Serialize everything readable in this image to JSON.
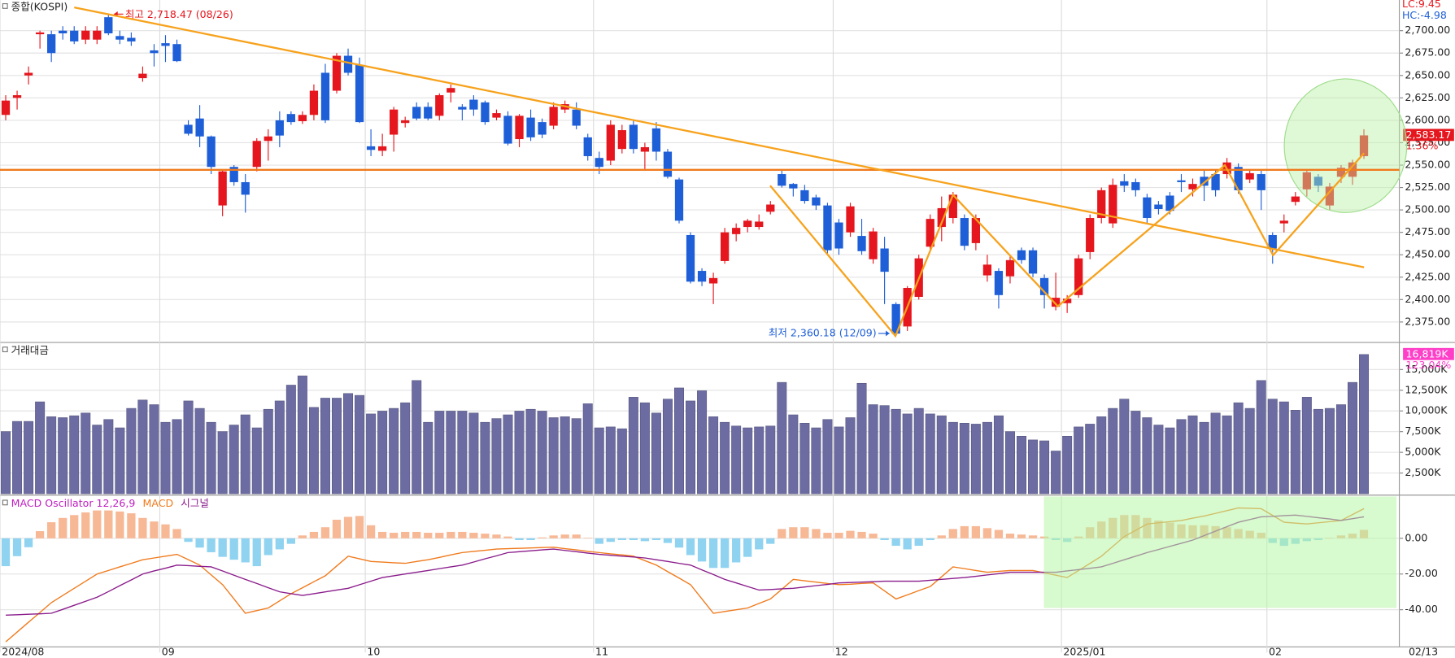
{
  "chart_data": [
    {
      "type": "candlestick",
      "title": "종합(KOSPI)",
      "lc": "LC:9.45",
      "hc": "HC:-4.98",
      "up_color": "#e5161d",
      "down_color": "#1e5fd8",
      "ylim": [
        2353.2,
        2734.2
      ],
      "yticks": [
        {
          "value": 2375,
          "label": "2,375.00"
        },
        {
          "value": 2400,
          "label": "2,400.00"
        },
        {
          "value": 2425,
          "label": "2,425.00"
        },
        {
          "value": 2450,
          "label": "2,450.00"
        },
        {
          "value": 2475,
          "label": "2,475.00"
        },
        {
          "value": 2500,
          "label": "2,500.00"
        },
        {
          "value": 2525,
          "label": "2,525.00"
        },
        {
          "value": 2550,
          "label": "2,550.00"
        },
        {
          "value": 2575,
          "label": "2,575.00"
        },
        {
          "value": 2600,
          "label": "2,600.00"
        },
        {
          "value": 2625,
          "label": "2,625.00"
        },
        {
          "value": 2650,
          "label": "2,650.00"
        },
        {
          "value": 2675,
          "label": "2,675.00"
        },
        {
          "value": 2700,
          "label": "2,700.00"
        }
      ],
      "grid": true,
      "high_annotation": "최고 2,718.47 (08/26)",
      "low_annotation": "최저 2,360.18 (12/09)",
      "last_value_label": "2,583.17",
      "last_change": "1.36%",
      "open": [
        2606,
        2625,
        2650,
        2696,
        2696,
        2700,
        2700,
        2690,
        2690,
        2715,
        2694,
        2692,
        2647,
        2678,
        2686,
        2685,
        2595,
        2602,
        2582,
        2505,
        2548,
        2531,
        2548,
        2577,
        2600,
        2607,
        2599,
        2606,
        2653,
        2633,
        2672,
        2662,
        2571,
        2566,
        2584,
        2597,
        2615,
        2615,
        2605,
        2631,
        2615,
        2623,
        2620,
        2603,
        2605,
        2579,
        2603,
        2598,
        2594,
        2612,
        2612,
        2581,
        2558,
        2555,
        2568,
        2595,
        2565,
        2591,
        2565,
        2534,
        2472,
        2432,
        2418,
        2443,
        2473,
        2481,
        2481,
        2498,
        2540,
        2529,
        2522,
        2514,
        2505,
        2486,
        2475,
        2471,
        2445,
        2457,
        2395,
        2370,
        2403,
        2459,
        2481,
        2491,
        2491,
        2463,
        2427,
        2432,
        2426,
        2455,
        2455,
        2424,
        2392,
        2396,
        2405,
        2453,
        2491,
        2485,
        2532,
        2531,
        2514,
        2506,
        2516,
        2533,
        2523,
        2537,
        2540,
        2540,
        2548,
        2534,
        2540,
        2472,
        2485,
        2509,
        2523,
        2537,
        2505,
        2537,
        2537,
        2560
      ],
      "high": [
        2628,
        2633,
        2660,
        2700,
        2700,
        2705,
        2705,
        2705,
        2705,
        2718.47,
        2700,
        2698,
        2660,
        2685,
        2695,
        2690,
        2600,
        2617,
        2583,
        2545,
        2550,
        2540,
        2580,
        2590,
        2610,
        2610,
        2610,
        2640,
        2663,
        2675,
        2680,
        2670,
        2590,
        2585,
        2615,
        2604,
        2620,
        2620,
        2630,
        2640,
        2618,
        2628,
        2622,
        2612,
        2610,
        2607,
        2612,
        2602,
        2620,
        2622,
        2620,
        2585,
        2565,
        2600,
        2595,
        2600,
        2575,
        2598,
        2568,
        2536,
        2475,
        2435,
        2430,
        2480,
        2485,
        2490,
        2495,
        2510,
        2545,
        2530,
        2528,
        2517,
        2508,
        2490,
        2508,
        2490,
        2480,
        2470,
        2397,
        2415,
        2450,
        2495,
        2515,
        2520,
        2495,
        2495,
        2450,
        2435,
        2448,
        2458,
        2458,
        2428,
        2430,
        2405,
        2450,
        2495,
        2525,
        2535,
        2540,
        2535,
        2518,
        2510,
        2520,
        2540,
        2535,
        2545,
        2545,
        2558,
        2552,
        2545,
        2545,
        2475,
        2495,
        2520,
        2545,
        2540,
        2530,
        2550,
        2556,
        2590
      ],
      "low": [
        2600,
        2612,
        2640,
        2680,
        2665,
        2690,
        2685,
        2685,
        2685,
        2695,
        2685,
        2683,
        2643,
        2660,
        2665,
        2665,
        2583,
        2570,
        2540,
        2493,
        2527,
        2497,
        2543,
        2555,
        2570,
        2595,
        2596,
        2600,
        2597,
        2630,
        2650,
        2597,
        2560,
        2560,
        2565,
        2592,
        2600,
        2600,
        2600,
        2620,
        2600,
        2605,
        2595,
        2600,
        2572,
        2570,
        2577,
        2580,
        2590,
        2608,
        2590,
        2555,
        2540,
        2550,
        2563,
        2563,
        2545,
        2555,
        2535,
        2485,
        2418,
        2415,
        2395,
        2440,
        2465,
        2475,
        2478,
        2495,
        2525,
        2515,
        2507,
        2500,
        2450,
        2450,
        2470,
        2450,
        2440,
        2395,
        2360.18,
        2365,
        2400,
        2455,
        2465,
        2485,
        2455,
        2455,
        2420,
        2390,
        2418,
        2440,
        2425,
        2390,
        2388,
        2385,
        2402,
        2445,
        2485,
        2480,
        2520,
        2515,
        2485,
        2495,
        2495,
        2520,
        2515,
        2510,
        2515,
        2535,
        2518,
        2530,
        2500,
        2440,
        2475,
        2505,
        2515,
        2520,
        2500,
        2530,
        2528,
        2557
      ],
      "close": [
        2622,
        2628,
        2653,
        2698,
        2675,
        2697,
        2688,
        2700,
        2700,
        2697,
        2690,
        2688,
        2652,
        2675,
        2683,
        2666,
        2585,
        2582,
        2548,
        2543,
        2531,
        2517,
        2577,
        2582,
        2583,
        2598,
        2606,
        2633,
        2600,
        2672,
        2653,
        2598,
        2567,
        2571,
        2612,
        2600,
        2602,
        2602,
        2628,
        2636,
        2612,
        2612,
        2598,
        2608,
        2574,
        2605,
        2581,
        2584,
        2615,
        2618,
        2594,
        2560,
        2548,
        2595,
        2589,
        2568,
        2570,
        2565,
        2537,
        2488,
        2420,
        2420,
        2424,
        2475,
        2480,
        2488,
        2487,
        2506,
        2527,
        2524,
        2510,
        2505,
        2455,
        2457,
        2504,
        2454,
        2476,
        2431,
        2362,
        2413,
        2446,
        2490,
        2502,
        2517,
        2460,
        2491,
        2439,
        2405,
        2444,
        2444,
        2429,
        2405,
        2402,
        2401,
        2446,
        2491,
        2522,
        2528,
        2527,
        2522,
        2491,
        2501,
        2499,
        2531,
        2529,
        2527,
        2522,
        2553,
        2522,
        2541,
        2522,
        2457,
        2488,
        2515,
        2542,
        2527,
        2526,
        2547,
        2553,
        2583.17
      ]
    },
    {
      "type": "bar",
      "title": "거래대금",
      "color": "#6c6ca2",
      "last_color": "#ff3fc8",
      "ylim": [
        0,
        18160
      ],
      "yticks": [
        {
          "value": 2500,
          "label": "2,500K"
        },
        {
          "value": 5000,
          "label": "5,000K"
        },
        {
          "value": 7500,
          "label": "7,500K"
        },
        {
          "value": 10000,
          "label": "10,000K"
        },
        {
          "value": 12500,
          "label": "12,500K"
        },
        {
          "value": 15000,
          "label": "15,000K"
        }
      ],
      "grid": true,
      "last_value_label": "16,819K",
      "last_change": "123.04%",
      "values": [
        7510,
        8740,
        8740,
        11100,
        9300,
        9190,
        9420,
        9750,
        8300,
        8970,
        7960,
        10310,
        11320,
        10760,
        8630,
        8970,
        11210,
        10310,
        8630,
        7510,
        8300,
        9530,
        7960,
        10200,
        11210,
        13120,
        14240,
        10430,
        11550,
        11550,
        12110,
        11880,
        9640,
        9980,
        10310,
        10990,
        13680,
        8630,
        9980,
        9980,
        9980,
        9750,
        8630,
        9080,
        9530,
        9980,
        10200,
        9980,
        9190,
        9300,
        9080,
        10870,
        7960,
        8070,
        7850,
        11660,
        10990,
        9750,
        11430,
        12780,
        11210,
        12440,
        9300,
        8630,
        8180,
        7960,
        8070,
        8180,
        13450,
        9530,
        8520,
        7960,
        8970,
        8070,
        9190,
        13340,
        10760,
        10650,
        10200,
        9640,
        10310,
        9640,
        9420,
        8630,
        8520,
        8410,
        8630,
        9420,
        7510,
        6950,
        6500,
        6390,
        5160,
        6950,
        8070,
        8410,
        9300,
        10310,
        11430,
        9980,
        9190,
        8300,
        7960,
        8970,
        9420,
        8630,
        9750,
        9420,
        10990,
        10310,
        13680,
        11430,
        11100,
        10090,
        11660,
        10200,
        10310,
        10760,
        13450,
        16819
      ]
    },
    {
      "type": "macd",
      "negative_color": "#8fd3f0",
      "ylim": [
        -60.8,
        23.4
      ],
      "yticks": [
        {
          "value": 0,
          "label": "0.00"
        },
        {
          "value": -20,
          "label": "-20.00"
        },
        {
          "value": -40,
          "label": "-40.00"
        }
      ],
      "grid": true,
      "categories": [
        "2024/08",
        null,
        null,
        null,
        null,
        null,
        null,
        null,
        null,
        null,
        null,
        null,
        null,
        null,
        "09",
        null,
        null,
        null,
        null,
        null,
        null,
        null,
        null,
        null,
        null,
        null,
        null,
        null,
        null,
        null,
        null,
        null,
        "10",
        null,
        null,
        null,
        null,
        null,
        null,
        null,
        null,
        null,
        null,
        null,
        null,
        null,
        null,
        null,
        null,
        null,
        null,
        null,
        "11",
        null,
        null,
        null,
        null,
        null,
        null,
        null,
        null,
        null,
        null,
        null,
        null,
        null,
        null,
        null,
        null,
        null,
        null,
        null,
        null,
        "12",
        null,
        null,
        null,
        null,
        null,
        null,
        null,
        null,
        null,
        null,
        null,
        null,
        null,
        null,
        null,
        null,
        null,
        null,
        null,
        "2025/01",
        null,
        null,
        null,
        null,
        null,
        null,
        null,
        null,
        null,
        null,
        null,
        null,
        null,
        null,
        null,
        null,
        null,
        "02",
        null,
        null,
        null,
        null,
        null,
        null,
        null,
        null
      ],
      "current_date": "02/13",
      "series": [
        {
          "name": "MACD Oscillator 12,26,9",
          "color": "#f7b896",
          "values": [
            -15.6,
            -10,
            -5,
            4,
            9,
            11.4,
            13,
            14.5,
            15.6,
            15.6,
            15,
            14,
            11.4,
            9.4,
            7.8,
            5.2,
            -2,
            -5.2,
            -7.8,
            -10.4,
            -12,
            -13.5,
            -15.6,
            -9.4,
            -6.2,
            -3.1,
            1.6,
            3.6,
            6.2,
            10.4,
            12,
            12.5,
            7.3,
            3.6,
            3.1,
            3.6,
            3.6,
            3.1,
            3.1,
            3.6,
            3.6,
            3.1,
            2.6,
            2.1,
            1,
            -1,
            -1,
            0.5,
            1.6,
            2.1,
            2.1,
            0.3,
            -3.1,
            -2,
            -1,
            -1,
            -1.6,
            -1,
            -2.6,
            -5.2,
            -9.4,
            -13,
            -16.6,
            -16.6,
            -13.5,
            -10.4,
            -6.2,
            -3.1,
            5.2,
            6.2,
            6.2,
            5.2,
            3.1,
            3.1,
            4.2,
            3.6,
            2.6,
            -1,
            -4.2,
            -6.2,
            -4.2,
            -1,
            1.6,
            5.2,
            6.8,
            6.8,
            5.7,
            4.7,
            2.6,
            2.1,
            1.6,
            1,
            -1,
            -2,
            1,
            6.2,
            9.4,
            11.4,
            13,
            13,
            11.4,
            9.9,
            8.8,
            7.8,
            7.3,
            7.3,
            6.8,
            6.2,
            5.2,
            4.2,
            3.1,
            -2.6,
            -4.2,
            -3.1,
            -1.6,
            -1,
            0.3,
            1.6,
            2.6,
            4.7
          ]
        },
        {
          "name": "MACD",
          "color": "#f07a1c",
          "values": [
            -58,
            -52.5,
            -47,
            -41.5,
            -36,
            -32,
            -28,
            -24,
            -20,
            -18,
            -16,
            -14,
            -12,
            -11,
            -10,
            -9,
            -12,
            -15,
            -20.5,
            -26,
            -34,
            -42,
            -40.5,
            -39,
            -35,
            -31,
            -27.7,
            -24.3,
            -21,
            -15.5,
            -10,
            -11.5,
            -13,
            -13.3,
            -13.7,
            -14,
            -13,
            -12,
            -10.7,
            -9.3,
            -8,
            -7.3,
            -6.7,
            -6,
            -5.8,
            -5.6,
            -5.4,
            -5.2,
            -5,
            -5.8,
            -6.5,
            -7.3,
            -8,
            -8.7,
            -9.3,
            -10,
            -12.5,
            -15,
            -18.7,
            -22.3,
            -26,
            -34,
            -42,
            -41,
            -40,
            -39,
            -36.5,
            -34,
            -28.5,
            -23,
            -23.8,
            -24.5,
            -25.3,
            -26,
            -25.7,
            -25.3,
            -25,
            -29.5,
            -34,
            -31.7,
            -29.3,
            -27,
            -21.5,
            -16,
            -17,
            -18,
            -19,
            -18.5,
            -18,
            -18,
            -18,
            -19.3,
            -20.7,
            -22,
            -18,
            -14,
            -10,
            -4.5,
            1,
            4.5,
            8,
            8.7,
            9.3,
            10,
            11.3,
            12.5,
            14,
            15.5,
            17,
            16.8,
            16.6,
            12.8,
            9,
            8.5,
            8,
            8.7,
            9.3,
            10,
            13.3,
            16.6
          ]
        },
        {
          "name": "시그널",
          "color": "#8a1c8c",
          "values": [
            -43,
            -42.8,
            -42.5,
            -42.3,
            -42,
            -39.8,
            -37.5,
            -35.3,
            -33,
            -29.8,
            -26.5,
            -23.3,
            -20,
            -18.3,
            -16.7,
            -15,
            -15.3,
            -15.7,
            -16,
            -18.3,
            -20.7,
            -23,
            -25.3,
            -27.7,
            -30,
            -31,
            -32,
            -31,
            -30,
            -29,
            -28,
            -26,
            -24,
            -22,
            -21,
            -20,
            -19,
            -18,
            -17,
            -16,
            -15,
            -13.3,
            -11.5,
            -9.8,
            -8,
            -7.5,
            -7,
            -6.5,
            -6,
            -6.8,
            -7.5,
            -8.3,
            -9,
            -9.5,
            -10,
            -10.5,
            -11,
            -12,
            -13,
            -14,
            -15,
            -17.7,
            -20.3,
            -23,
            -25,
            -27,
            -29,
            -28.7,
            -28.3,
            -28,
            -27.3,
            -26.5,
            -25.8,
            -25,
            -24.8,
            -24.5,
            -24.3,
            -24,
            -24,
            -24,
            -24,
            -23.5,
            -23,
            -22.5,
            -22,
            -21.3,
            -20.5,
            -19.8,
            -19,
            -19,
            -19,
            -19,
            -19,
            -18.3,
            -17.5,
            -16.8,
            -16,
            -14,
            -12,
            -10,
            -8,
            -6.3,
            -4.5,
            -2.8,
            -1,
            1.5,
            4,
            6.5,
            9,
            10.5,
            12,
            12.3,
            12.7,
            13,
            12.3,
            11.5,
            10.8,
            10,
            11,
            12
          ]
        }
      ]
    }
  ]
}
